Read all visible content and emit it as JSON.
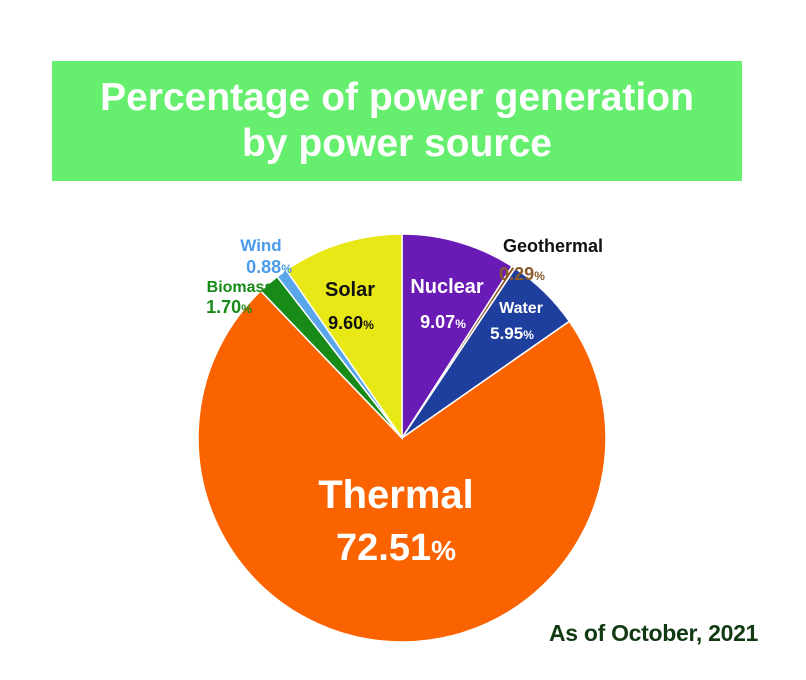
{
  "title_line1": "Percentage of power generation",
  "title_line2": "by power source",
  "footnote": "As of October, 2021",
  "colors": {
    "title_band": "#66ee6e",
    "title_text": "#ffffff"
  },
  "chart_data": {
    "type": "pie",
    "title": "Percentage of power generation by power source",
    "slices": [
      {
        "label": "Nuclear",
        "value": 9.07,
        "value_text": "9.07",
        "unit": "%",
        "color": "#6a1bb5"
      },
      {
        "label": "Geothermal",
        "value": 0.29,
        "value_text": "0.29",
        "unit": "%",
        "color": "#8b5a2b"
      },
      {
        "label": "Water",
        "value": 5.95,
        "value_text": "5.95",
        "unit": "%",
        "color": "#1f3f9f"
      },
      {
        "label": "Thermal",
        "value": 72.51,
        "value_text": "72.51",
        "unit": "%",
        "color": "#fb6300"
      },
      {
        "label": "Biomass",
        "value": 1.7,
        "value_text": "1.70",
        "unit": "%",
        "color": "#178a17"
      },
      {
        "label": "Wind",
        "value": 0.88,
        "value_text": "0.88",
        "unit": "%",
        "color": "#5aa6ea"
      },
      {
        "label": "Solar",
        "value": 9.6,
        "value_text": "9.60",
        "unit": "%",
        "color": "#e8e816"
      }
    ]
  }
}
